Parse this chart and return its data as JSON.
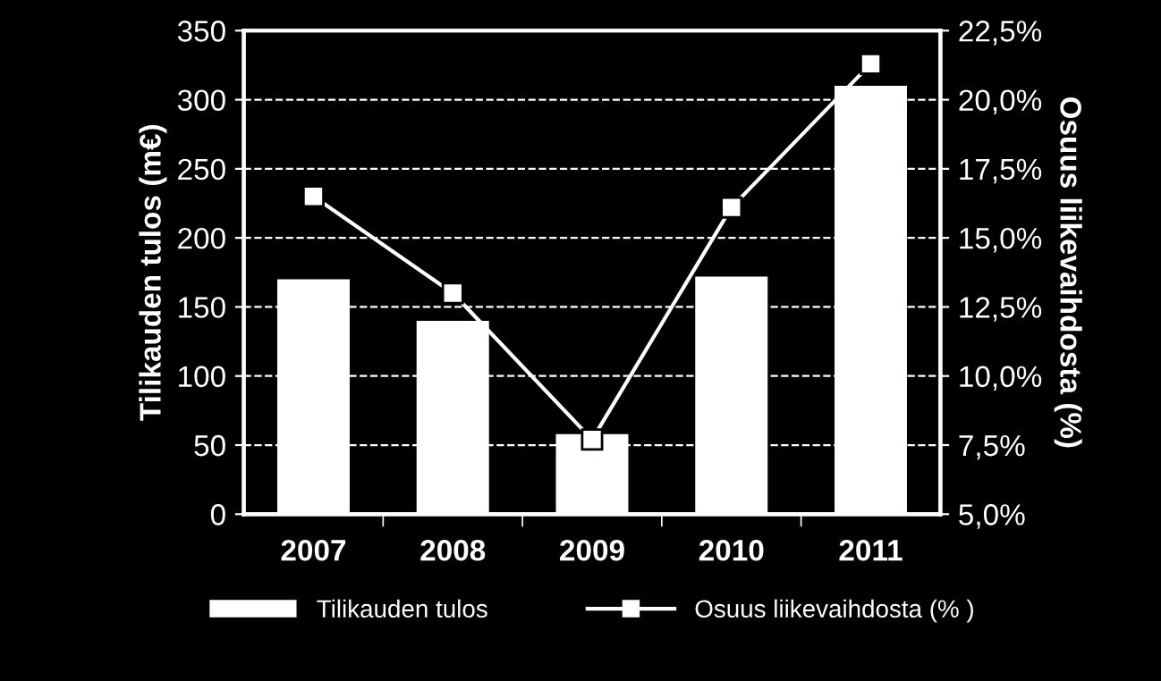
{
  "chart_data": {
    "type": "bar",
    "categories": [
      "2007",
      "2008",
      "2009",
      "2010",
      "2011"
    ],
    "ylabel": "Tilikauden tulos (m€)",
    "y2label": "Osuus liikevaihdosta (%)",
    "series": [
      {
        "name": "Tilikauden tulos",
        "color": "#ffffff",
        "values": [
          170,
          140,
          58,
          172,
          310
        ]
      },
      {
        "name": "Osuus liikevaihdosta (% )",
        "type": "line",
        "axis": "y2",
        "color": "#ffffff",
        "marker": "square",
        "values": [
          16.5,
          13.0,
          7.7,
          16.1,
          21.3
        ]
      }
    ],
    "ylim": [
      0,
      350
    ],
    "yticks": [
      0,
      50,
      100,
      150,
      200,
      250,
      300,
      350
    ],
    "y2lim": [
      5,
      22.5
    ],
    "y2ticks": [
      {
        "value": 5,
        "label": "5,0%"
      },
      {
        "value": 7.5,
        "label": "7,5%"
      },
      {
        "value": 10,
        "label": "10,0%"
      },
      {
        "value": 12.5,
        "label": "12,5%"
      },
      {
        "value": 15,
        "label": "15,0%"
      },
      {
        "value": 17.5,
        "label": "17,5%"
      },
      {
        "value": 20,
        "label": "20,0%"
      },
      {
        "value": 22.5,
        "label": "22,5%"
      }
    ],
    "grid": "y",
    "legend": "bottom"
  }
}
